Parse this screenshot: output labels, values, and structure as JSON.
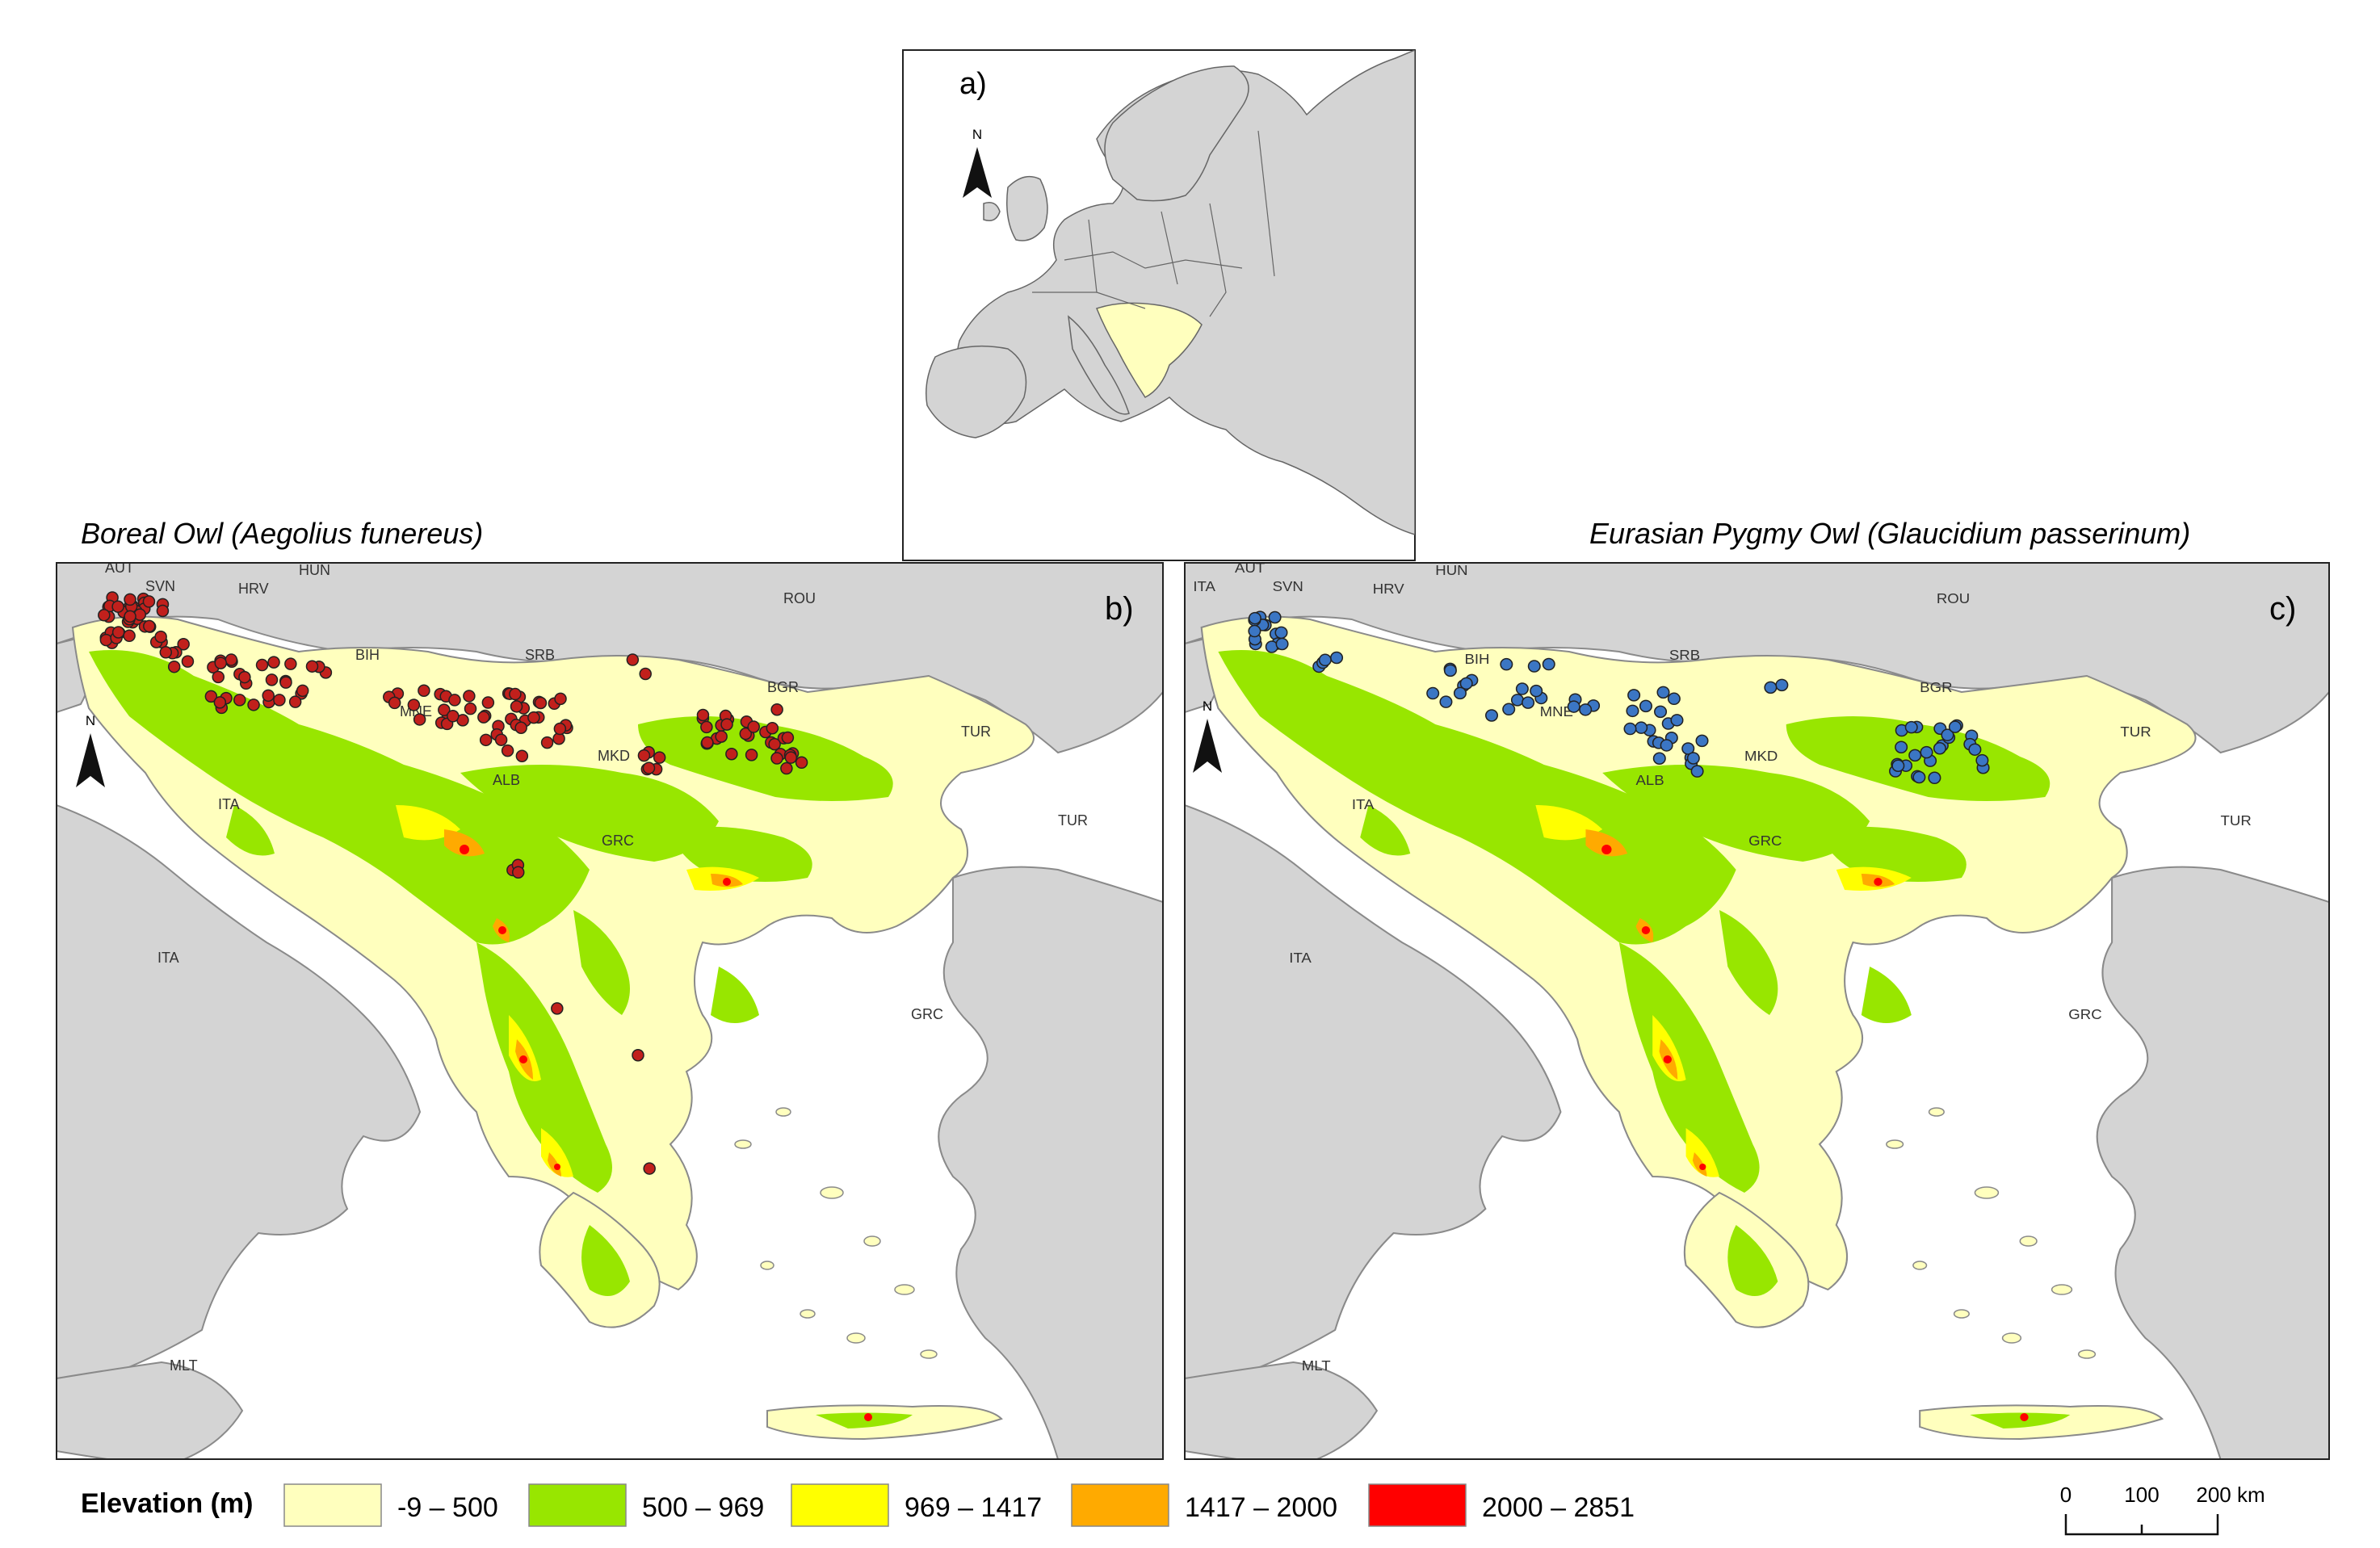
{
  "panels": {
    "a": {
      "label": "a)",
      "north_label": "N"
    },
    "b": {
      "label": "b)",
      "title": "Boreal Owl (Aegolius funereus)",
      "marker_color": "#c1201c",
      "north_label": "N"
    },
    "c": {
      "label": "c)",
      "title": "Eurasian Pygmy Owl (Glaucidium passerinum)",
      "marker_color": "#3b76c4",
      "north_label": "N"
    }
  },
  "country_labels": {
    "b": [
      "AUT",
      "SVN",
      "HUN",
      "HRV",
      "ROU",
      "BIH",
      "SRB",
      "BGR",
      "MNE",
      "TUR",
      "MKD",
      "ALB",
      "ITA",
      "TUR",
      "GRC",
      "ITA",
      "MLT",
      "GRC"
    ],
    "c": [
      "AUT",
      "ITA",
      "SVN",
      "HUN",
      "HRV",
      "ROU",
      "BIH",
      "SRB",
      "BGR",
      "MNE",
      "TUR",
      "MKD",
      "ALB",
      "ITA",
      "TUR",
      "GRC",
      "ITA",
      "MLT",
      "GRC"
    ]
  },
  "legend": {
    "title": "Elevation (m)",
    "classes": [
      {
        "label": "-9 – 500",
        "color": "#ffffbe"
      },
      {
        "label": "500 – 969",
        "color": "#98e600"
      },
      {
        "label": "969 – 1417",
        "color": "#ffff00"
      },
      {
        "label": "1417 – 2000",
        "color": "#ffaa00"
      },
      {
        "label": "2000 – 2851",
        "color": "#ff0000"
      }
    ]
  },
  "scale_bar": {
    "ticks": [
      "0",
      "100",
      "200 km"
    ]
  },
  "colors": {
    "land_other": "#d4d4d4",
    "sea": "#ffffff",
    "border": "#8a8a8a"
  }
}
